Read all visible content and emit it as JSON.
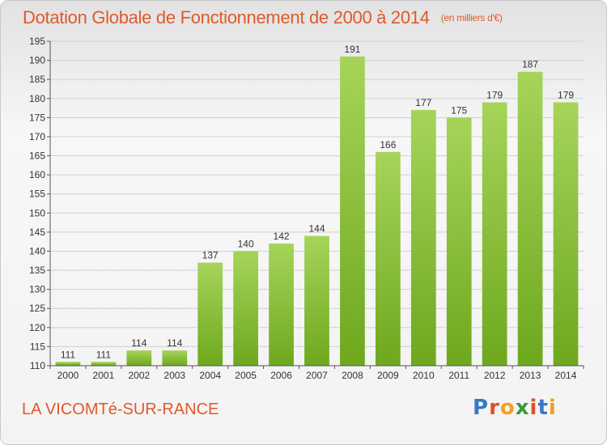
{
  "title": "Dotation Globale de Fonctionnement de 2000 à 2014",
  "unit_note": "(en milliers d'€)",
  "commune": "LA VICOMTé-SUR-RANCE",
  "logo": {
    "text": "Proxiti",
    "letter_colors": [
      "#3a78c8",
      "#e0502a",
      "#f0a020",
      "#3a9a3a",
      "#e0502a",
      "#3a78c8",
      "#f0a020"
    ]
  },
  "colors": {
    "title": "#e05a2a",
    "bar_top": "#a6d45a",
    "bar_bottom": "#6ea81e",
    "grid": "#cfcfcf"
  },
  "chart_data": {
    "type": "bar",
    "title": "Dotation Globale de Fonctionnement de 2000 à 2014",
    "subtitle": "(en milliers d'€)",
    "xlabel": "",
    "ylabel": "",
    "categories": [
      "2000",
      "2001",
      "2002",
      "2003",
      "2004",
      "2005",
      "2006",
      "2007",
      "2008",
      "2009",
      "2010",
      "2011",
      "2012",
      "2013",
      "2014"
    ],
    "values": [
      111,
      111,
      114,
      114,
      137,
      140,
      142,
      144,
      191,
      166,
      177,
      175,
      179,
      187,
      179
    ],
    "ylim": [
      110,
      195
    ],
    "yticks": [
      110,
      115,
      120,
      125,
      130,
      135,
      140,
      145,
      150,
      155,
      160,
      165,
      170,
      175,
      180,
      185,
      190,
      195
    ],
    "grid": true,
    "legend": "none"
  }
}
